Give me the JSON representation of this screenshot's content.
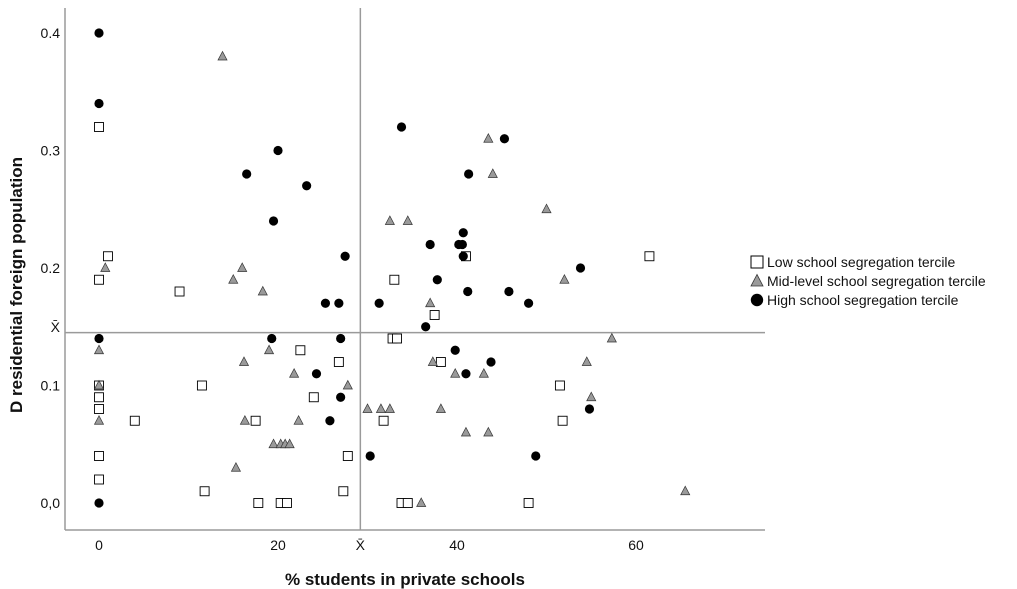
{
  "chart_data": {
    "type": "scatter",
    "xlabel": "% students in private schools",
    "ylabel": "D residential foreign population",
    "xlim": [
      -4,
      72
    ],
    "ylim": [
      -0.025,
      0.425
    ],
    "x_ticks": [
      {
        "value": 0,
        "label": "0"
      },
      {
        "value": 20,
        "label": "20"
      },
      {
        "value": 29.2,
        "label": "X̄"
      },
      {
        "value": 40,
        "label": "40"
      },
      {
        "value": 60,
        "label": "60"
      }
    ],
    "y_ticks": [
      {
        "value": 0.0,
        "label": "0,0"
      },
      {
        "value": 0.1,
        "label": "0.1"
      },
      {
        "value": 0.15,
        "label": "X̄"
      },
      {
        "value": 0.2,
        "label": "0.2"
      },
      {
        "value": 0.3,
        "label": "0.3"
      },
      {
        "value": 0.4,
        "label": "0.4"
      }
    ],
    "reference_lines": {
      "x_mean": 29.2,
      "y_mean": 0.145
    },
    "legend_position": "right",
    "series": [
      {
        "name": "Low school segregation tercile",
        "marker": "square-open",
        "color": "#000000",
        "points": [
          [
            0,
            0.32
          ],
          [
            0,
            0.19
          ],
          [
            1,
            0.21
          ],
          [
            9,
            0.18
          ],
          [
            0,
            0.1
          ],
          [
            0,
            0.09
          ],
          [
            0,
            0.08
          ],
          [
            4,
            0.07
          ],
          [
            0,
            0.04
          ],
          [
            0,
            0.02
          ],
          [
            11.5,
            0.1
          ],
          [
            11.8,
            0.01
          ],
          [
            17.8,
            0.0
          ],
          [
            17.5,
            0.07
          ],
          [
            20.3,
            0.0
          ],
          [
            21,
            0.0
          ],
          [
            22.5,
            0.13
          ],
          [
            24,
            0.09
          ],
          [
            26.8,
            0.12
          ],
          [
            27.3,
            0.01
          ],
          [
            27.8,
            0.04
          ],
          [
            31.8,
            0.07
          ],
          [
            33,
            0.19
          ],
          [
            32.8,
            0.14
          ],
          [
            33.3,
            0.14
          ],
          [
            33.8,
            0.0
          ],
          [
            34.5,
            0.0
          ],
          [
            37.5,
            0.16
          ],
          [
            38.2,
            0.12
          ],
          [
            41,
            0.21
          ],
          [
            48,
            0.0
          ],
          [
            51.5,
            0.1
          ],
          [
            51.8,
            0.07
          ],
          [
            61.5,
            0.21
          ]
        ]
      },
      {
        "name": "Mid-level school segregation tercile",
        "marker": "triangle",
        "color": "#9a9a9a",
        "points": [
          [
            13.8,
            0.38
          ],
          [
            0.7,
            0.2
          ],
          [
            0,
            0.13
          ],
          [
            0,
            0.1
          ],
          [
            0,
            0.07
          ],
          [
            15,
            0.19
          ],
          [
            16,
            0.2
          ],
          [
            18.3,
            0.18
          ],
          [
            16.2,
            0.12
          ],
          [
            16.3,
            0.07
          ],
          [
            19,
            0.13
          ],
          [
            19.5,
            0.05
          ],
          [
            20.3,
            0.05
          ],
          [
            20.8,
            0.05
          ],
          [
            21.3,
            0.05
          ],
          [
            21.8,
            0.11
          ],
          [
            22.3,
            0.07
          ],
          [
            15.3,
            0.03
          ],
          [
            27.8,
            0.1
          ],
          [
            30,
            0.08
          ],
          [
            31.5,
            0.08
          ],
          [
            32.5,
            0.08
          ],
          [
            32.5,
            0.24
          ],
          [
            34.5,
            0.24
          ],
          [
            36,
            0.0
          ],
          [
            37,
            0.17
          ],
          [
            37.3,
            0.12
          ],
          [
            38.2,
            0.08
          ],
          [
            39.8,
            0.11
          ],
          [
            41,
            0.06
          ],
          [
            43,
            0.11
          ],
          [
            43.5,
            0.31
          ],
          [
            44,
            0.28
          ],
          [
            43.5,
            0.06
          ],
          [
            50,
            0.25
          ],
          [
            52,
            0.19
          ],
          [
            54.5,
            0.12
          ],
          [
            55,
            0.09
          ],
          [
            57.3,
            0.14
          ],
          [
            65.5,
            0.01
          ]
        ]
      },
      {
        "name": "High school segregation tercile",
        "marker": "circle",
        "color": "#000000",
        "points": [
          [
            0,
            0.4
          ],
          [
            0,
            0.34
          ],
          [
            0,
            0.14
          ],
          [
            0,
            0.0
          ],
          [
            16.5,
            0.28
          ],
          [
            19.5,
            0.24
          ],
          [
            20,
            0.3
          ],
          [
            23.2,
            0.27
          ],
          [
            19.3,
            0.14
          ],
          [
            24.3,
            0.11
          ],
          [
            25.3,
            0.17
          ],
          [
            25.8,
            0.07
          ],
          [
            26.8,
            0.17
          ],
          [
            27,
            0.14
          ],
          [
            27.5,
            0.21
          ],
          [
            27,
            0.09
          ],
          [
            30.3,
            0.04
          ],
          [
            31.3,
            0.17
          ],
          [
            33.8,
            0.32
          ],
          [
            36.5,
            0.15
          ],
          [
            37,
            0.22
          ],
          [
            37.8,
            0.19
          ],
          [
            39.8,
            0.13
          ],
          [
            40.2,
            0.22
          ],
          [
            40.6,
            0.22
          ],
          [
            40.7,
            0.23
          ],
          [
            40.7,
            0.21
          ],
          [
            41,
            0.11
          ],
          [
            41.3,
            0.28
          ],
          [
            41.2,
            0.18
          ],
          [
            43.8,
            0.12
          ],
          [
            45.3,
            0.31
          ],
          [
            45.8,
            0.18
          ],
          [
            48,
            0.17
          ],
          [
            48.8,
            0.04
          ],
          [
            53.8,
            0.2
          ],
          [
            54.8,
            0.08
          ]
        ]
      }
    ]
  }
}
